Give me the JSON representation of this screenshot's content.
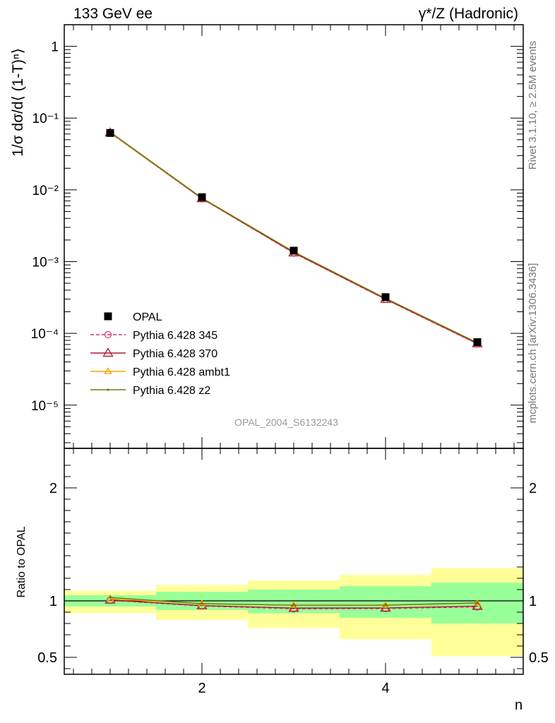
{
  "header": {
    "left_title": "133 GeV ee",
    "right_title": "γ*/Z (Hadronic)"
  },
  "side_labels": {
    "rivet": "Rivet 3.1.10, ≥ 2.5M events",
    "mcplots": "mcplots.cern.ch [arXiv:1306.3436]"
  },
  "watermark": "OPAL_2004_S6132243",
  "chart_data": [
    {
      "type": "scatter",
      "ylabel": "1/σ dσ/d⟨ (1-T)ⁿ⟩",
      "yscale": "log",
      "xlim": [
        0.5,
        5.5
      ],
      "ylim": [
        2.5e-06,
        2
      ],
      "ytick_labels": [
        "1",
        "10⁻¹",
        "10⁻²",
        "10⁻³",
        "10⁻⁴",
        "10⁻⁵"
      ],
      "legend_position": "bottom-left",
      "x": [
        1,
        2,
        3,
        4,
        5
      ],
      "series": [
        {
          "name": "OPAL",
          "marker": "square",
          "color": "#000000",
          "values": [
            0.062,
            0.0079,
            0.00142,
            0.00032,
            7.55e-05
          ]
        },
        {
          "name": "Pythia 6.428 345",
          "marker": "circle",
          "line": "dashed",
          "color": "#d6336c",
          "values": [
            0.0625,
            0.00755,
            0.00132,
            0.000298,
            7.15e-05
          ]
        },
        {
          "name": "Pythia 6.428 370",
          "marker": "triangle",
          "line": "solid",
          "color": "#b5172f",
          "values": [
            0.0625,
            0.00757,
            0.00133,
            0.0003,
            7.2e-05
          ]
        },
        {
          "name": "Pythia 6.428 ambt1",
          "marker": "triangle",
          "line": "solid",
          "color": "#f0a800",
          "values": [
            0.0632,
            0.0077,
            0.00137,
            0.000308,
            7.4e-05
          ]
        },
        {
          "name": "Pythia 6.428 z2",
          "marker": "dot",
          "line": "solid",
          "color": "#6b7d12",
          "values": [
            0.064,
            0.0077,
            0.00137,
            0.000308,
            7.42e-05
          ]
        }
      ]
    },
    {
      "type": "line",
      "xlabel": "n",
      "ylabel": "Ratio to OPAL",
      "xlim": [
        0.5,
        5.5
      ],
      "ylim": [
        0.35,
        2.35
      ],
      "x_ticks": [
        2,
        4
      ],
      "y_ticks": [
        0.5,
        1,
        2
      ],
      "x_tick_labels": [
        "2",
        "4"
      ],
      "y_tick_labels": [
        "0.5",
        "1",
        "2"
      ],
      "bins": [
        [
          0.5,
          1.5
        ],
        [
          1.5,
          2.5
        ],
        [
          2.5,
          3.5
        ],
        [
          3.5,
          4.5
        ],
        [
          4.5,
          5.5
        ]
      ],
      "band_inner": [
        [
          0.95,
          1.05
        ],
        [
          0.92,
          1.08
        ],
        [
          0.89,
          1.1
        ],
        [
          0.85,
          1.13
        ],
        [
          0.8,
          1.16
        ]
      ],
      "band_outer": [
        [
          0.89,
          1.09
        ],
        [
          0.83,
          1.14
        ],
        [
          0.76,
          1.18
        ],
        [
          0.66,
          1.23
        ],
        [
          0.51,
          1.29
        ]
      ],
      "x": [
        1,
        2,
        3,
        4,
        5
      ],
      "series": [
        {
          "name": "Pythia 6.428 345",
          "color": "#d6336c",
          "line": "dashed",
          "marker": "circle",
          "values": [
            1.005,
            0.955,
            0.93,
            0.932,
            0.947
          ]
        },
        {
          "name": "Pythia 6.428 370",
          "color": "#b5172f",
          "line": "solid",
          "marker": "triangle",
          "values": [
            1.008,
            0.958,
            0.936,
            0.937,
            0.953
          ]
        },
        {
          "name": "Pythia 6.428 ambt1",
          "color": "#f0a800",
          "line": "solid",
          "marker": "triangle",
          "values": [
            1.018,
            0.975,
            0.962,
            0.962,
            0.98
          ]
        },
        {
          "name": "Pythia 6.428 z2",
          "color": "#6b7d12",
          "line": "solid",
          "marker": "dot",
          "values": [
            1.03,
            0.975,
            0.962,
            0.962,
            0.982
          ]
        }
      ]
    }
  ],
  "colors": {
    "band_inner": "#99ff99",
    "band_outer": "#ffff99",
    "watermark": "#999999",
    "side_text": "#777777"
  }
}
